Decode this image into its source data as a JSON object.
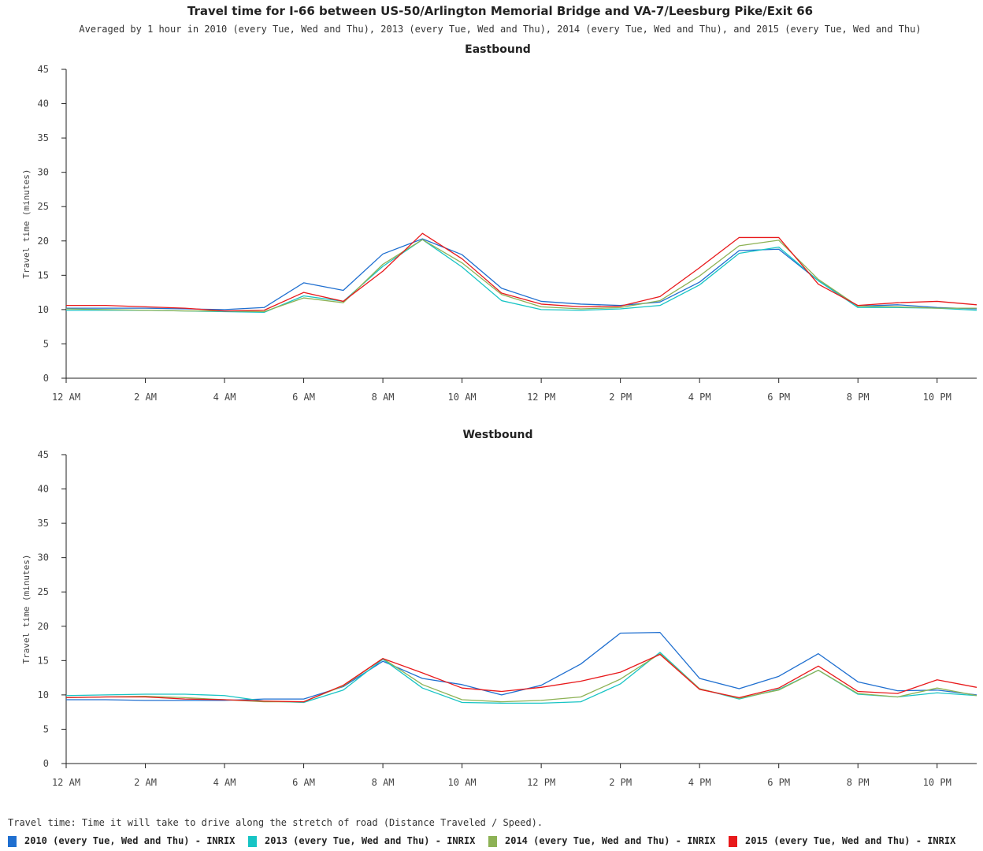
{
  "title": "Travel time for I-66 between US-50/Arlington Memorial Bridge and VA-7/Leesburg Pike/Exit 66",
  "subtitle": "Averaged by 1 hour in 2010 (every Tue, Wed and Thu), 2013 (every Tue, Wed and Thu), 2014 (every Tue, Wed and Thu), and 2015 (every Tue, Wed and Thu)",
  "footnote": "Travel time: Time it will take to drive along the stretch of road (Distance Traveled / Speed).",
  "legend": [
    {
      "label": "2010 (every Tue, Wed and Thu) - INRIX",
      "color": "#1f6fd0"
    },
    {
      "label": "2013 (every Tue, Wed and Thu) - INRIX",
      "color": "#17c4c4"
    },
    {
      "label": "2014 (every Tue, Wed and Thu) - INRIX",
      "color": "#8db255"
    },
    {
      "label": "2015 (every Tue, Wed and Thu) - INRIX",
      "color": "#e8191b"
    }
  ],
  "chart_data": [
    {
      "type": "line",
      "title": "Eastbound",
      "ylabel": "Travel time (minutes)",
      "xlabel": "",
      "ylim": [
        0,
        45
      ],
      "yticks": [
        0,
        5,
        10,
        15,
        20,
        25,
        30,
        35,
        40,
        45
      ],
      "xlim": [
        0,
        23
      ],
      "xtick_labels": [
        "12 AM",
        "2 AM",
        "4 AM",
        "6 AM",
        "8 AM",
        "10 AM",
        "12 PM",
        "2 PM",
        "4 PM",
        "6 PM",
        "8 PM",
        "10 PM"
      ],
      "grid": false,
      "x": [
        0,
        1,
        2,
        3,
        4,
        5,
        6,
        7,
        8,
        9,
        10,
        11,
        12,
        13,
        14,
        15,
        16,
        17,
        18,
        19,
        20,
        21,
        22,
        23
      ],
      "series": [
        {
          "name": "2010 (every Tue, Wed and Thu) - INRIX",
          "color": "#1f6fd0",
          "values": [
            10.2,
            10.2,
            10.2,
            10.1,
            10.0,
            10.3,
            13.9,
            12.8,
            18.1,
            20.3,
            18.0,
            13.1,
            11.2,
            10.8,
            10.6,
            11.1,
            14.0,
            18.6,
            18.8,
            14.2,
            10.5,
            10.7,
            10.3,
            10.1
          ]
        },
        {
          "name": "2013 (every Tue, Wed and Thu) - INRIX",
          "color": "#17c4c4",
          "values": [
            9.9,
            9.9,
            9.9,
            9.8,
            9.7,
            9.6,
            12.0,
            11.2,
            16.3,
            20.2,
            16.2,
            11.3,
            10.0,
            9.9,
            10.1,
            10.6,
            13.6,
            18.2,
            19.1,
            14.2,
            10.3,
            10.3,
            10.2,
            9.9
          ]
        },
        {
          "name": "2014 (every Tue, Wed and Thu) - INRIX",
          "color": "#8db255",
          "values": [
            10.1,
            10.0,
            9.9,
            9.8,
            9.8,
            9.7,
            11.7,
            11.0,
            16.6,
            20.2,
            16.8,
            12.2,
            10.4,
            10.1,
            10.3,
            11.3,
            14.9,
            19.3,
            20.1,
            14.4,
            10.5,
            10.4,
            10.2,
            10.2
          ]
        },
        {
          "name": "2015 (every Tue, Wed and Thu) - INRIX",
          "color": "#e8191b",
          "values": [
            10.6,
            10.6,
            10.4,
            10.2,
            9.8,
            9.9,
            12.5,
            11.2,
            15.6,
            21.1,
            17.4,
            12.4,
            10.8,
            10.4,
            10.5,
            11.9,
            16.1,
            20.5,
            20.5,
            13.7,
            10.6,
            11.0,
            11.2,
            10.7
          ]
        }
      ]
    },
    {
      "type": "line",
      "title": "Westbound",
      "ylabel": "Travel time (minutes)",
      "xlabel": "",
      "ylim": [
        0,
        45
      ],
      "yticks": [
        0,
        5,
        10,
        15,
        20,
        25,
        30,
        35,
        40,
        45
      ],
      "xlim": [
        0,
        23
      ],
      "xtick_labels": [
        "12 AM",
        "2 AM",
        "4 AM",
        "6 AM",
        "8 AM",
        "10 AM",
        "12 PM",
        "2 PM",
        "4 PM",
        "6 PM",
        "8 PM",
        "10 PM"
      ],
      "grid": false,
      "x": [
        0,
        1,
        2,
        3,
        4,
        5,
        6,
        7,
        8,
        9,
        10,
        11,
        12,
        13,
        14,
        15,
        16,
        17,
        18,
        19,
        20,
        21,
        22,
        23
      ],
      "series": [
        {
          "name": "2010 (every Tue, Wed and Thu) - INRIX",
          "color": "#1f6fd0",
          "values": [
            9.3,
            9.3,
            9.2,
            9.2,
            9.2,
            9.4,
            9.4,
            11.2,
            14.9,
            12.4,
            11.5,
            10.0,
            11.4,
            14.5,
            19.0,
            19.1,
            12.4,
            10.9,
            12.7,
            16.0,
            11.9,
            10.6,
            10.7,
            10.0
          ]
        },
        {
          "name": "2013 (every Tue, Wed and Thu) - INRIX",
          "color": "#17c4c4",
          "values": [
            9.9,
            10.0,
            10.1,
            10.1,
            9.9,
            9.1,
            8.9,
            10.7,
            15.2,
            11.0,
            8.9,
            8.8,
            8.8,
            9.0,
            11.6,
            16.2,
            10.9,
            9.4,
            10.8,
            13.6,
            10.1,
            9.7,
            10.3,
            9.9
          ]
        },
        {
          "name": "2014 (every Tue, Wed and Thu) - INRIX",
          "color": "#8db255",
          "values": [
            9.6,
            9.7,
            9.8,
            9.6,
            9.3,
            9.0,
            9.0,
            11.3,
            15.3,
            11.5,
            9.3,
            9.0,
            9.2,
            9.7,
            12.3,
            16.0,
            10.9,
            9.5,
            10.7,
            13.6,
            10.2,
            9.7,
            11.0,
            9.9
          ]
        },
        {
          "name": "2015 (every Tue, Wed and Thu) - INRIX",
          "color": "#e8191b",
          "values": [
            9.6,
            9.7,
            9.7,
            9.4,
            9.3,
            9.1,
            9.0,
            11.4,
            15.3,
            13.2,
            11.0,
            10.5,
            11.1,
            12.0,
            13.3,
            15.9,
            10.8,
            9.6,
            11.0,
            14.2,
            10.5,
            10.2,
            12.2,
            11.1
          ]
        }
      ]
    }
  ]
}
